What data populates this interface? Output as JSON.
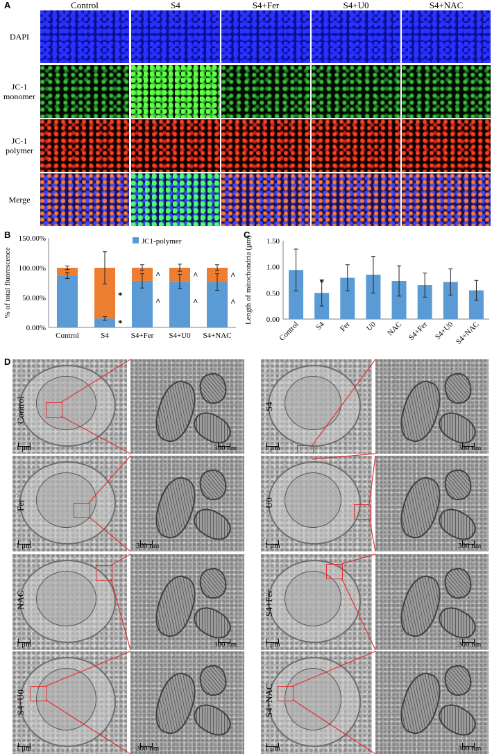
{
  "panel_a": {
    "letter": "A",
    "columns": [
      "Control",
      "S4",
      "S4+Fer",
      "S4+U0",
      "S4+NAC"
    ],
    "rows": [
      {
        "label": "DAPI",
        "stain": "blue"
      },
      {
        "label": "JC-1 monomer",
        "stain": "green"
      },
      {
        "label": "JC-1 polymer",
        "stain": "red"
      },
      {
        "label": "Merge",
        "stain": "merge"
      }
    ]
  },
  "panel_b": {
    "letter": "B",
    "legend": "JC1-polymer",
    "colors": {
      "polymer": "#5b9bd5",
      "monomer": "#ed7d31"
    }
  },
  "panel_c": {
    "letter": "C",
    "color": "#5b9bd5"
  },
  "panel_d": {
    "letter": "D",
    "tiles": [
      {
        "label": "Control",
        "scale_low": "1 μm",
        "scale_high": "300 nm"
      },
      {
        "label": "S4",
        "scale_low": "1 μm",
        "scale_high": "300 nm"
      },
      {
        "label": "Fer",
        "scale_low": "1 μm",
        "scale_high": "300 nm"
      },
      {
        "label": "U0",
        "scale_low": "1 μm",
        "scale_high": "300 nm"
      },
      {
        "label": "NAC",
        "scale_low": "1 μm",
        "scale_high": "300 nm"
      },
      {
        "label": "S4+Fer",
        "scale_low": "1 μm",
        "scale_high": "300 nm"
      },
      {
        "label": "S4+U0",
        "scale_low": "1 μm",
        "scale_high": "300 nm"
      },
      {
        "label": "S4+NAC",
        "scale_low": "1 μm",
        "scale_high": "300 nm"
      }
    ]
  },
  "chart_data": [
    {
      "panel": "B",
      "type": "bar",
      "stacked": true,
      "categories": [
        "Control",
        "S4",
        "S4+Fer",
        "S4+U0",
        "S4+NAC"
      ],
      "series": [
        {
          "name": "JC1-polymer",
          "values": [
            87,
            15,
            78,
            77,
            76
          ],
          "error": [
            5,
            3,
            12,
            12,
            14
          ]
        },
        {
          "values": [
            13,
            85,
            22,
            23,
            24
          ],
          "error": [
            3,
            27,
            5,
            6,
            5
          ]
        }
      ],
      "ylabel": "% of total fluorescence",
      "ylim": [
        0,
        150
      ],
      "yticks": [
        "0.00%",
        "50.00%",
        "100.00%",
        "150.00%"
      ],
      "annotations": {
        "polymer": [
          "",
          "*",
          "^",
          "^",
          "^"
        ],
        "monomer": [
          "",
          "*",
          "^",
          "^",
          "^"
        ]
      },
      "grid": false,
      "legend": "top-right"
    },
    {
      "panel": "C",
      "type": "bar",
      "categories": [
        "Control",
        "S4",
        "Fer",
        "U0",
        "NAC",
        "S4+Fer",
        "S4+U0",
        "S4+NAC"
      ],
      "values": [
        0.94,
        0.5,
        0.79,
        0.85,
        0.73,
        0.65,
        0.71,
        0.55
      ],
      "error": [
        0.4,
        0.25,
        0.25,
        0.35,
        0.29,
        0.23,
        0.25,
        0.19
      ],
      "annotations": [
        "",
        "*",
        "",
        "",
        "",
        "",
        "",
        ""
      ],
      "ylabel": "Length of mitochondria (μm)",
      "ylim": [
        0,
        1.5
      ],
      "yticks": [
        "0.00",
        "0.50",
        "1.00",
        "1.50"
      ],
      "grid": false
    }
  ]
}
